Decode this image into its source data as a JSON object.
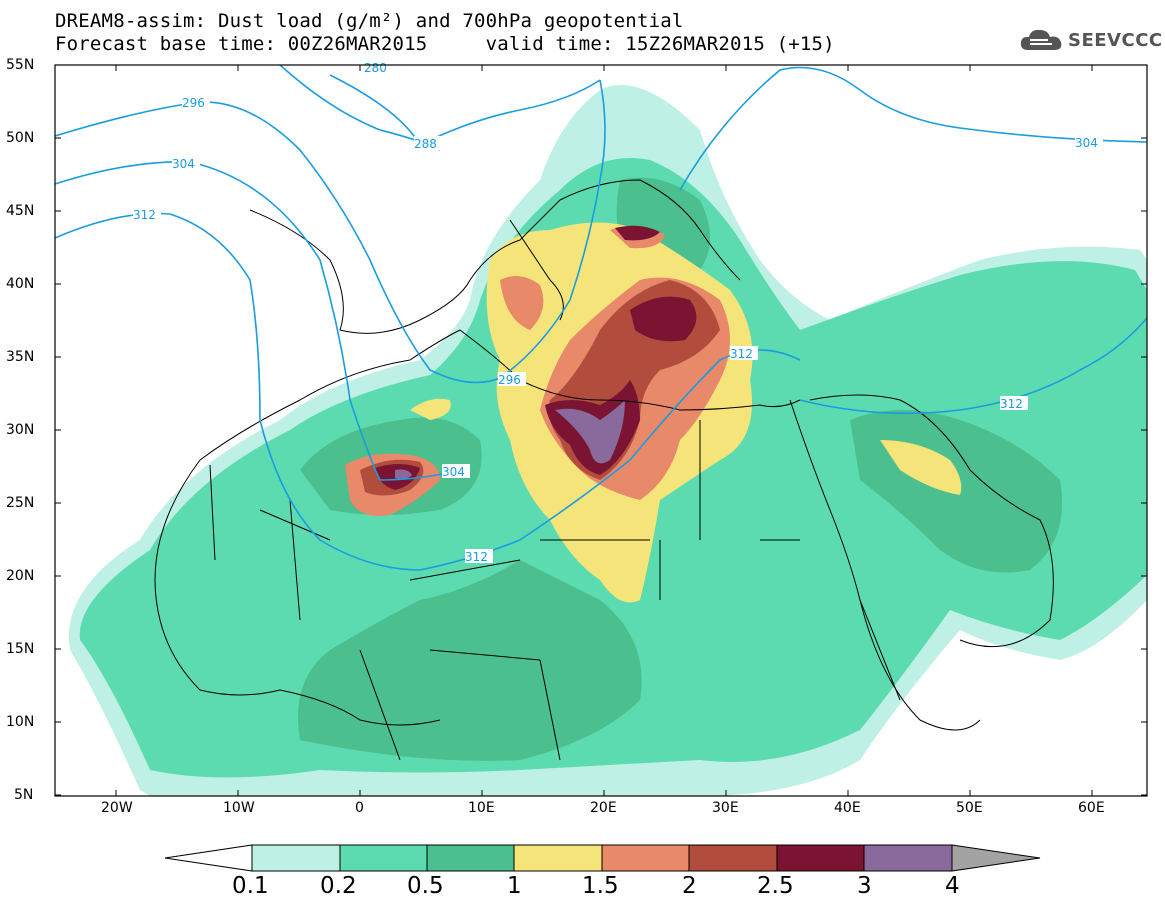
{
  "title": {
    "line1": "DREAM8-assim: Dust load (g/m²) and 700hPa geopotential",
    "line2": "Forecast base time: 00Z26MAR2015     valid time: 15Z26MAR2015 (+15)"
  },
  "logo": {
    "text": "SEEVCCC",
    "icon": "cloud-icon"
  },
  "axes": {
    "lat_labels": [
      "55N",
      "50N",
      "45N",
      "40N",
      "35N",
      "30N",
      "25N",
      "20N",
      "15N",
      "10N",
      "5N"
    ],
    "lon_labels": [
      "20W",
      "10W",
      "0",
      "10E",
      "20E",
      "30E",
      "40E",
      "50E",
      "60E"
    ]
  },
  "contour_labels": [
    "280",
    "296",
    "288",
    "304",
    "304",
    "312",
    "296",
    "312",
    "312",
    "304",
    "312"
  ],
  "colorbar": {
    "ticks": [
      "0.1",
      "0.2",
      "0.5",
      "1",
      "1.5",
      "2",
      "2.5",
      "3",
      "4"
    ],
    "colors": [
      "#ffffff",
      "#bff0e6",
      "#5ddbb0",
      "#4bbf8e",
      "#f5e47a",
      "#e8896a",
      "#b24d3e",
      "#7a1432",
      "#8a6a9c",
      "#a3a3a3"
    ]
  },
  "palette": {
    "c01": "#bff0e6",
    "c02": "#5ddbb0",
    "c05": "#4bbf8e",
    "c1": "#f5e47a",
    "c15": "#e8896a",
    "c2": "#b24d3e",
    "c25": "#7a1432",
    "c3": "#8a6a9c",
    "contour": "#1a9ce0"
  }
}
